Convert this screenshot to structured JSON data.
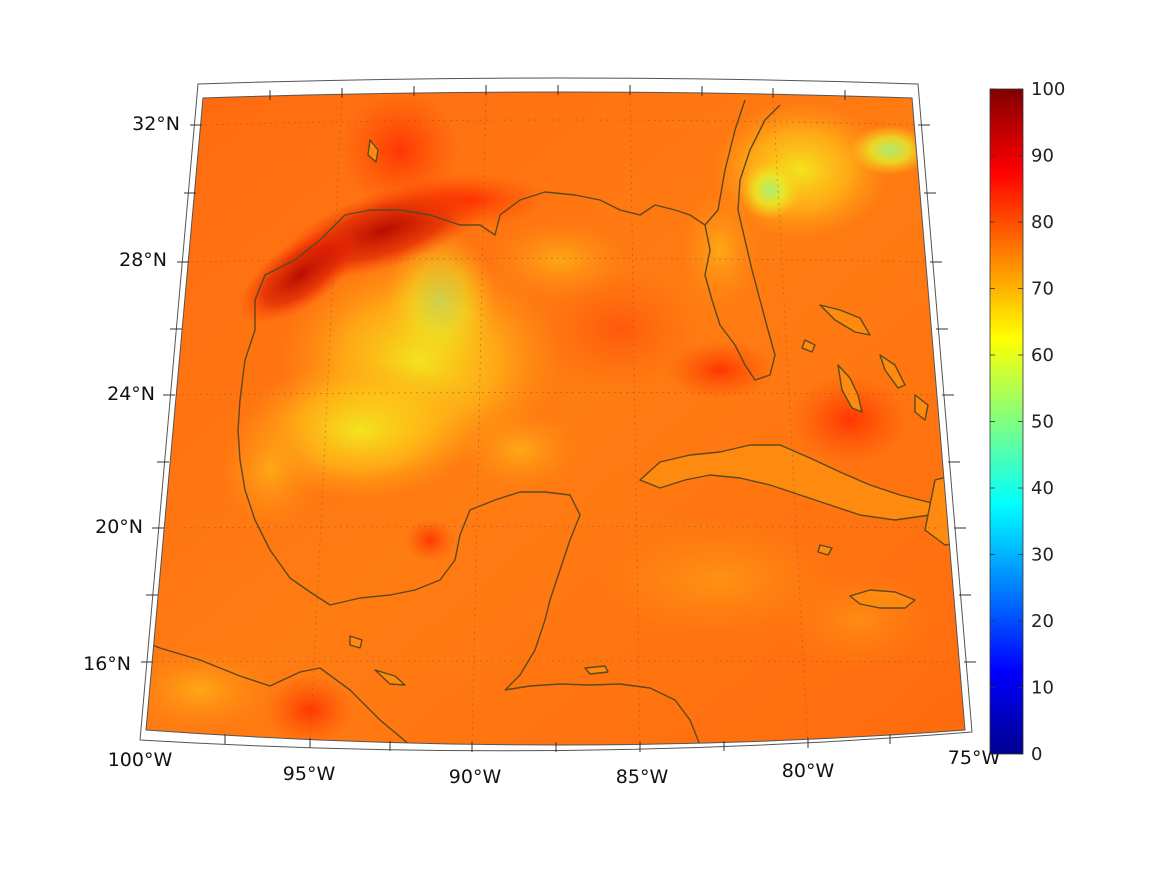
{
  "map": {
    "lat_labels": [
      {
        "deg": 32,
        "text": "32°N"
      },
      {
        "deg": 28,
        "text": "28°N"
      },
      {
        "deg": 24,
        "text": "24°N"
      },
      {
        "deg": 20,
        "text": "20°N"
      },
      {
        "deg": 16,
        "text": "16°N"
      }
    ],
    "lon_labels": [
      {
        "deg": -100,
        "text": "100°W"
      },
      {
        "deg": -95,
        "text": "95°W"
      },
      {
        "deg": -90,
        "text": "90°W"
      },
      {
        "deg": -85,
        "text": "85°W"
      },
      {
        "deg": -80,
        "text": "80°W"
      },
      {
        "deg": -75,
        "text": "75°W"
      }
    ],
    "extent": {
      "lon_min": -100,
      "lon_max": -75,
      "lat_min": 14,
      "lat_max": 33
    },
    "colorbar": {
      "colormap": "jet",
      "min": 0,
      "max": 100,
      "ticks": [
        "0",
        "10",
        "20",
        "30",
        "40",
        "50",
        "60",
        "70",
        "80",
        "90",
        "100"
      ]
    },
    "colors": {
      "coastline": "#5a4a1c",
      "field_base": "#ff7a12",
      "field_high": "#c80a00",
      "field_low": "#f4e01a"
    }
  }
}
